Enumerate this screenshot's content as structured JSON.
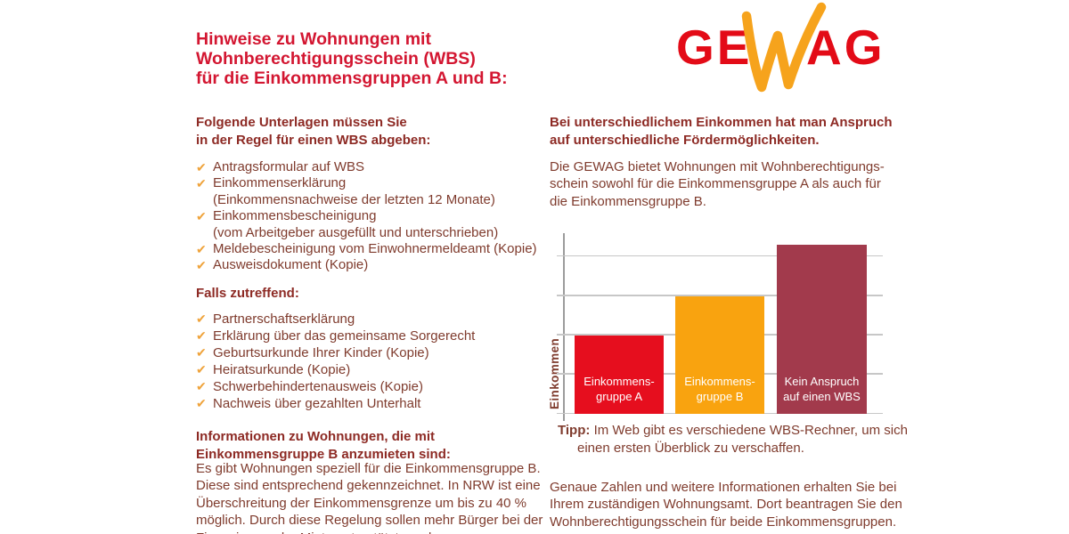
{
  "title": "Hinweise zu Wohnungen mit\nWohnberechtigungsschein (WBS)\nfür die Einkommensgruppen A und B:",
  "logo": {
    "ge": "GE",
    "ag": "AG",
    "w_icon": "swoosh-w-icon"
  },
  "icons": {
    "check": "✔"
  },
  "colors": {
    "title_red": "#d31631",
    "subhead_red": "#8d2a24",
    "body_brown": "#7f3b2d",
    "check_orange": "#efa33b",
    "logo_red": "#e30b17",
    "logo_orange": "#f6a31c"
  },
  "left": {
    "subhead_documents": "Folgende Unterlagen müssen Sie\nin der Regel für einen WBS abgeben:",
    "documents": [
      "Antragsformular auf WBS",
      "Einkommenserklärung\n(Einkommensnachweise der letzten 12 Monate)",
      "Einkommensbescheinigung\n(vom Arbeitgeber ausgefüllt und unterschrieben)",
      "Meldebescheinigung vom Einwohnermeldeamt (Kopie)",
      "Ausweisdokument (Kopie)"
    ],
    "subhead_conditional": "Falls zutreffend:",
    "conditional": [
      "Partnerschaftserklärung",
      "Erklärung über das gemeinsame Sorgerecht",
      "Geburtsurkunde Ihrer Kinder (Kopie)",
      "Heiratsurkunde (Kopie)",
      "Schwerbehindertenausweis (Kopie)",
      "Nachweis über gezahlten Unterhalt"
    ],
    "subhead_info_b": "Informationen zu Wohnungen, die mit\nEinkommensgruppe B anzumieten sind:",
    "info_b_text": "Es gibt Wohnungen speziell für die Einkommensgruppe B.\nDiese sind entsprechend gekennzeichnet. In NRW ist eine\nÜberschreitung der Einkommensgrenze um bis zu 40 %\nmöglich. Durch diese Regelung sollen mehr Bürger bei der\nFinanzierung der Miete unterstützt werden."
  },
  "right": {
    "subhead": "Bei unterschiedlichem Einkommen hat man Anspruch\nauf unterschiedliche Fördermöglichkeiten.",
    "intro": "Die GEWAG bietet Wohnungen mit Wohnberechtigungs-\nschein sowohl für die Einkommensgruppe A als auch für\ndie Einkommensgruppe B.",
    "tip_label": "Tipp:",
    "tip_text": "Im Web gibt es verschiedene WBS-Rechner, um sich\neinen ersten Überblick zu verschaffen.",
    "outro": "Genaue Zahlen und weitere Informationen erhalten Sie bei\nIhrem zuständigen Wohnungsamt. Dort beantragen Sie den\nWohnberechtigungsschein für beide Einkommensgruppen."
  },
  "chart_data": {
    "type": "bar",
    "categories": [
      "Einkommens-\ngruppe A",
      "Einkommens-\ngruppe B",
      "Kein Anspruch\nauf einen WBS"
    ],
    "values": [
      2,
      3,
      4.3
    ],
    "bar_colors": [
      "#e60e1e",
      "#f9a30f",
      "#a23a4c"
    ],
    "ylabel": "Einkommen",
    "ylim": [
      0,
      4.6
    ],
    "gridlines": [
      0,
      1,
      2,
      3,
      4
    ],
    "x_tick_labels": [],
    "y_tick_labels": [],
    "legend": "none",
    "note_labels_inside_bars": true
  }
}
